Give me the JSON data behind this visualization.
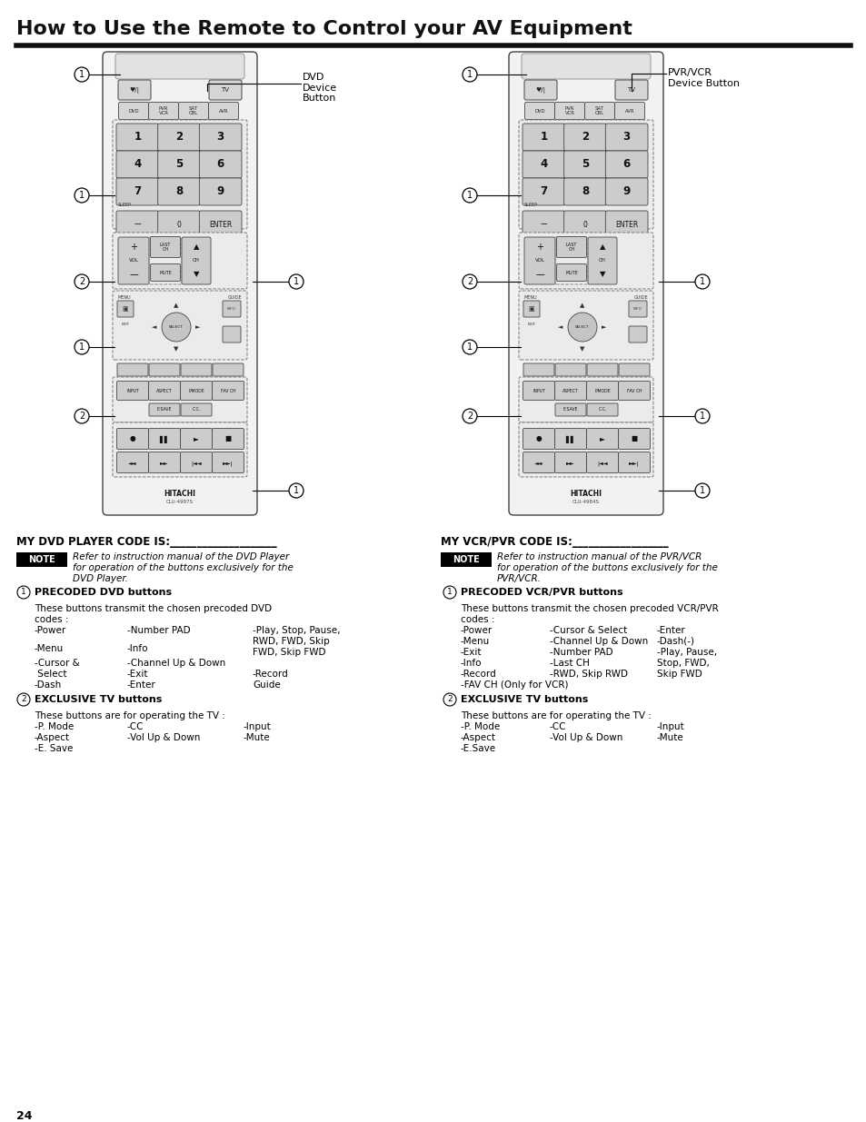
{
  "title": "How to Use the Remote to Control your AV Equipment",
  "page_number": "24",
  "bg_color": "#ffffff",
  "title_color": "#111111",
  "title_fontsize": 16,
  "left_model": "CLU-4997S",
  "right_model": "CLU-4984S",
  "section_left_header": "MY DVD PLAYER CODE IS:",
  "section_right_header": "MY VCR/PVR CODE IS:",
  "note_left_line1": "Refer to instruction manual of the DVD Player",
  "note_left_line2": "for operation of the buttons exclusively for the",
  "note_left_line3": "DVD Player.",
  "note_right_line1": "Refer to instruction manual of the PVR/VCR",
  "note_right_line2": "for operation of the buttons exclusively for the",
  "note_right_line3": "PVR/VCR."
}
